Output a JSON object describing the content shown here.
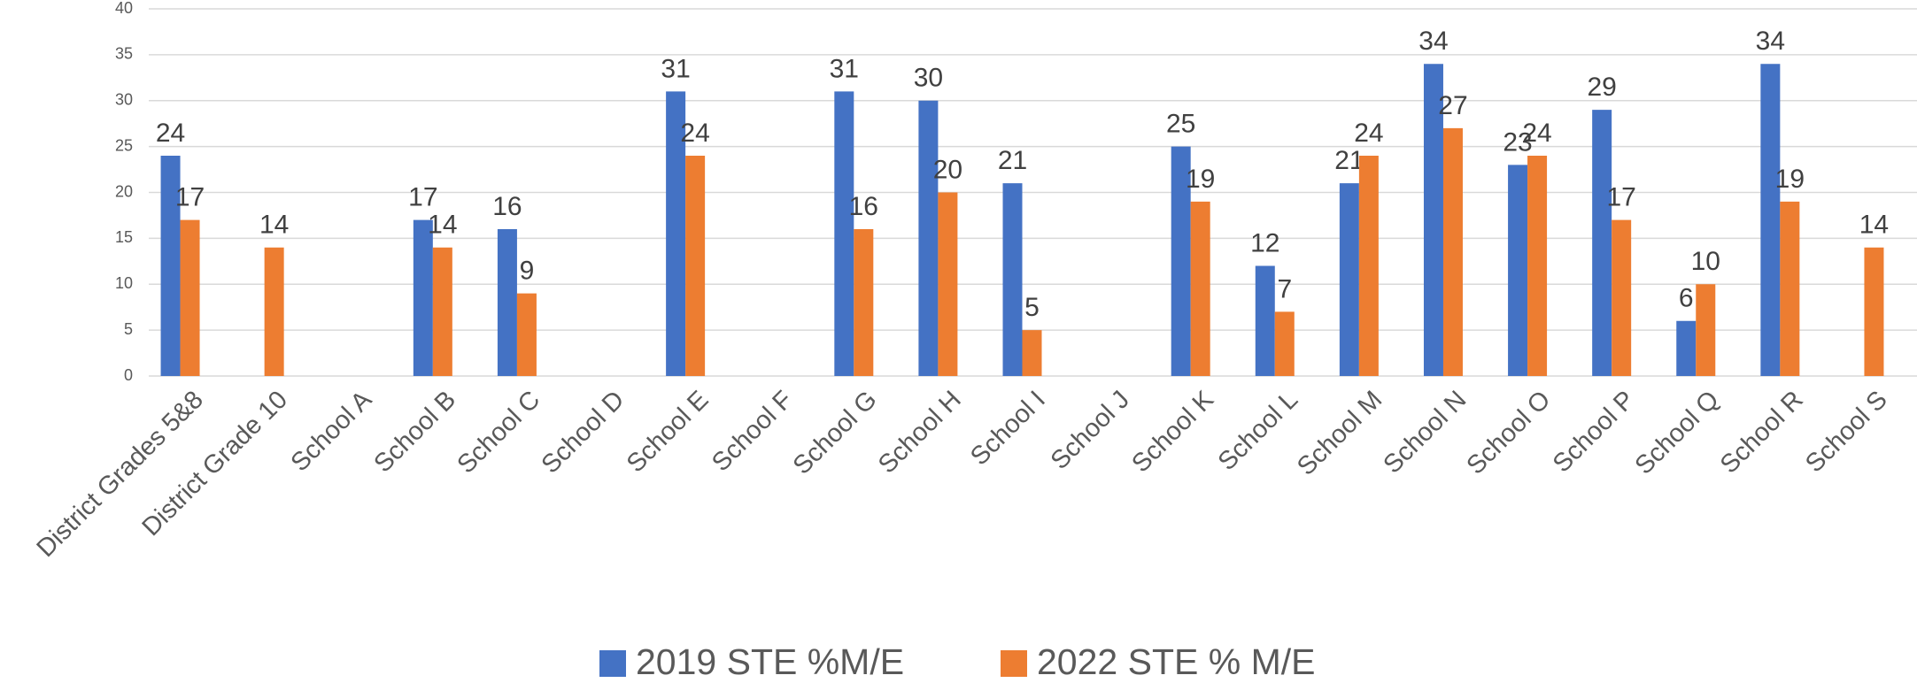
{
  "chart_data": {
    "type": "bar",
    "categories": [
      "District Grades 5&8",
      "District Grade 10",
      "School A",
      "School B",
      "School C",
      "School D",
      "School E",
      "School F",
      "School G",
      "School H",
      "School I",
      "School J",
      "School K",
      "School L",
      "School M",
      "School N",
      "School O",
      "School P",
      "School Q",
      "School R",
      "School S"
    ],
    "series": [
      {
        "name": "2019 STE %M/E",
        "color": "#4472c4",
        "values": [
          24,
          null,
          null,
          17,
          16,
          null,
          31,
          null,
          31,
          30,
          21,
          null,
          25,
          12,
          21,
          34,
          23,
          29,
          6,
          34,
          null
        ]
      },
      {
        "name": "2022 STE % M/E",
        "color": "#ed7d31",
        "values": [
          17,
          14,
          null,
          14,
          9,
          null,
          24,
          null,
          16,
          20,
          5,
          null,
          19,
          7,
          24,
          27,
          24,
          17,
          10,
          19,
          14
        ]
      }
    ],
    "ylim": [
      0,
      40
    ],
    "yticks": [
      0,
      5,
      10,
      15,
      20,
      25,
      30,
      35,
      40
    ],
    "grid": true,
    "legend": "bottom"
  }
}
